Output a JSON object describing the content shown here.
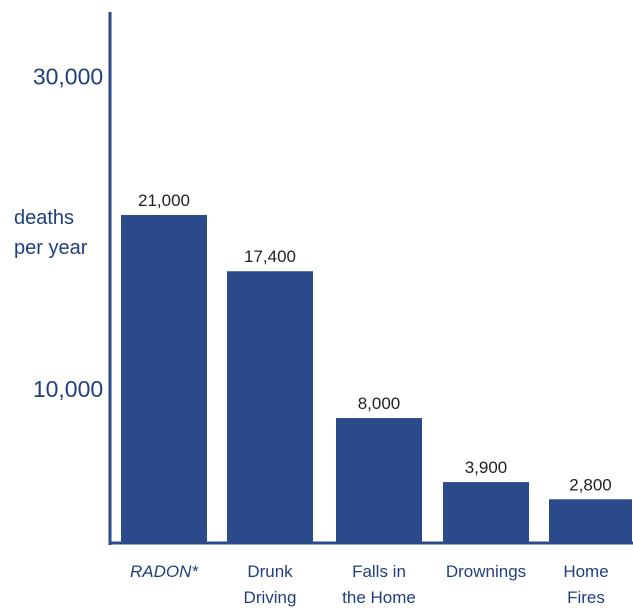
{
  "chart_data": {
    "type": "bar",
    "categories": [
      {
        "lines": [
          "RADON*"
        ],
        "italic": true
      },
      {
        "lines": [
          "Drunk",
          "Driving"
        ],
        "italic": false
      },
      {
        "lines": [
          "Falls in",
          "the Home"
        ],
        "italic": false
      },
      {
        "lines": [
          "Drownings"
        ],
        "italic": false
      },
      {
        "lines": [
          "Home",
          "Fires"
        ],
        "italic": false
      }
    ],
    "values": [
      21000,
      17400,
      8000,
      3900,
      2800
    ],
    "value_labels": [
      "21,000",
      "17,400",
      "8,000",
      "3,900",
      "2,800"
    ],
    "ylabel_lines": [
      "deaths",
      "per year"
    ],
    "yticks": [
      {
        "value": 30000,
        "label": "30,000"
      },
      {
        "value": 10000,
        "label": "10,000"
      }
    ],
    "ylim": [
      0,
      30000
    ],
    "grid": false,
    "colors": {
      "bar": "#2b4a8b",
      "axis": "#2b4a8b",
      "text": "#1f3f7f",
      "value_text": "#222222"
    }
  }
}
